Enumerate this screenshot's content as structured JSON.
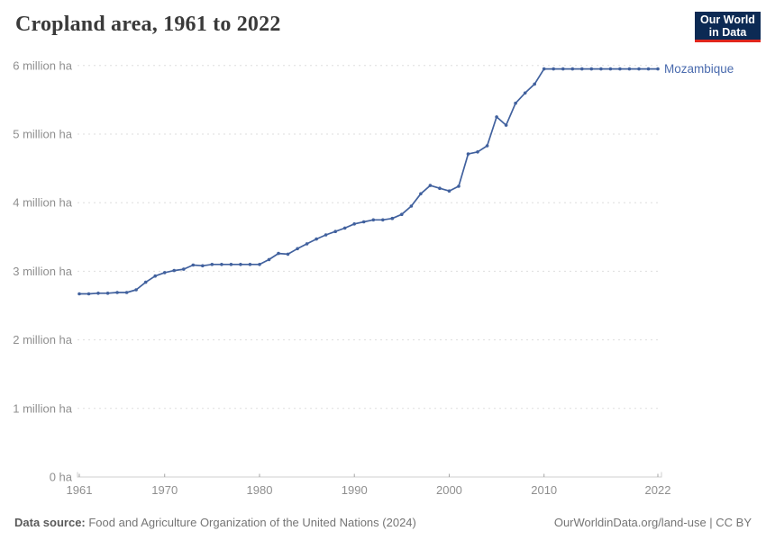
{
  "header": {
    "title": "Cropland area, 1961 to 2022",
    "logo": {
      "line1": "Our World",
      "line2": "in Data"
    }
  },
  "footer": {
    "source_label": "Data source:",
    "source_text": " Food and Agriculture Organization of the United Nations (2024)",
    "rights": "OurWorldinData.org/land-use | CC BY"
  },
  "colors": {
    "line": "#41619e",
    "entity_label": "#4a6bae",
    "grid": "#dedede",
    "axis_line": "#cfcfcf",
    "tick": "#a5a5a5",
    "tick_label": "#8f8f8f",
    "logo_bg": "#0c2a54",
    "logo_stripe": "#e0261c"
  },
  "chart_data": {
    "type": "line",
    "title": "Cropland area, 1961 to 2022",
    "unit": "million ha",
    "grid": "horizontal-dashed",
    "legend_position": "end-of-line",
    "xlim": [
      1961,
      2022
    ],
    "ylim": [
      0,
      6
    ],
    "xticks": [
      1961,
      1970,
      1980,
      1990,
      2000,
      2010,
      2022
    ],
    "yticks": [
      {
        "v": 0,
        "label": "0 ha"
      },
      {
        "v": 1,
        "label": "1 million ha"
      },
      {
        "v": 2,
        "label": "2 million ha"
      },
      {
        "v": 3,
        "label": "3 million ha"
      },
      {
        "v": 4,
        "label": "4 million ha"
      },
      {
        "v": 5,
        "label": "5 million ha"
      },
      {
        "v": 6,
        "label": "6 million ha"
      }
    ],
    "x": [
      1961,
      1962,
      1963,
      1964,
      1965,
      1966,
      1967,
      1968,
      1969,
      1970,
      1971,
      1972,
      1973,
      1974,
      1975,
      1976,
      1977,
      1978,
      1979,
      1980,
      1981,
      1982,
      1983,
      1984,
      1985,
      1986,
      1987,
      1988,
      1989,
      1990,
      1991,
      1992,
      1993,
      1994,
      1995,
      1996,
      1997,
      1998,
      1999,
      2000,
      2001,
      2002,
      2003,
      2004,
      2005,
      2006,
      2007,
      2008,
      2009,
      2010,
      2011,
      2012,
      2013,
      2014,
      2015,
      2016,
      2017,
      2018,
      2019,
      2020,
      2021,
      2022
    ],
    "series": [
      {
        "name": "Mozambique",
        "unit": "million ha",
        "values": [
          2.67,
          2.67,
          2.68,
          2.68,
          2.69,
          2.69,
          2.73,
          2.84,
          2.93,
          2.98,
          3.01,
          3.03,
          3.09,
          3.08,
          3.1,
          3.1,
          3.1,
          3.1,
          3.1,
          3.1,
          3.17,
          3.26,
          3.25,
          3.33,
          3.4,
          3.47,
          3.53,
          3.58,
          3.63,
          3.69,
          3.72,
          3.75,
          3.75,
          3.77,
          3.83,
          3.95,
          4.13,
          4.25,
          4.21,
          4.17,
          4.24,
          4.71,
          4.74,
          4.83,
          5.25,
          5.13,
          5.45,
          5.6,
          5.73,
          5.95,
          5.95,
          5.95,
          5.95,
          5.95,
          5.95,
          5.95,
          5.95,
          5.95,
          5.95,
          5.95,
          5.95,
          5.95
        ]
      }
    ]
  }
}
